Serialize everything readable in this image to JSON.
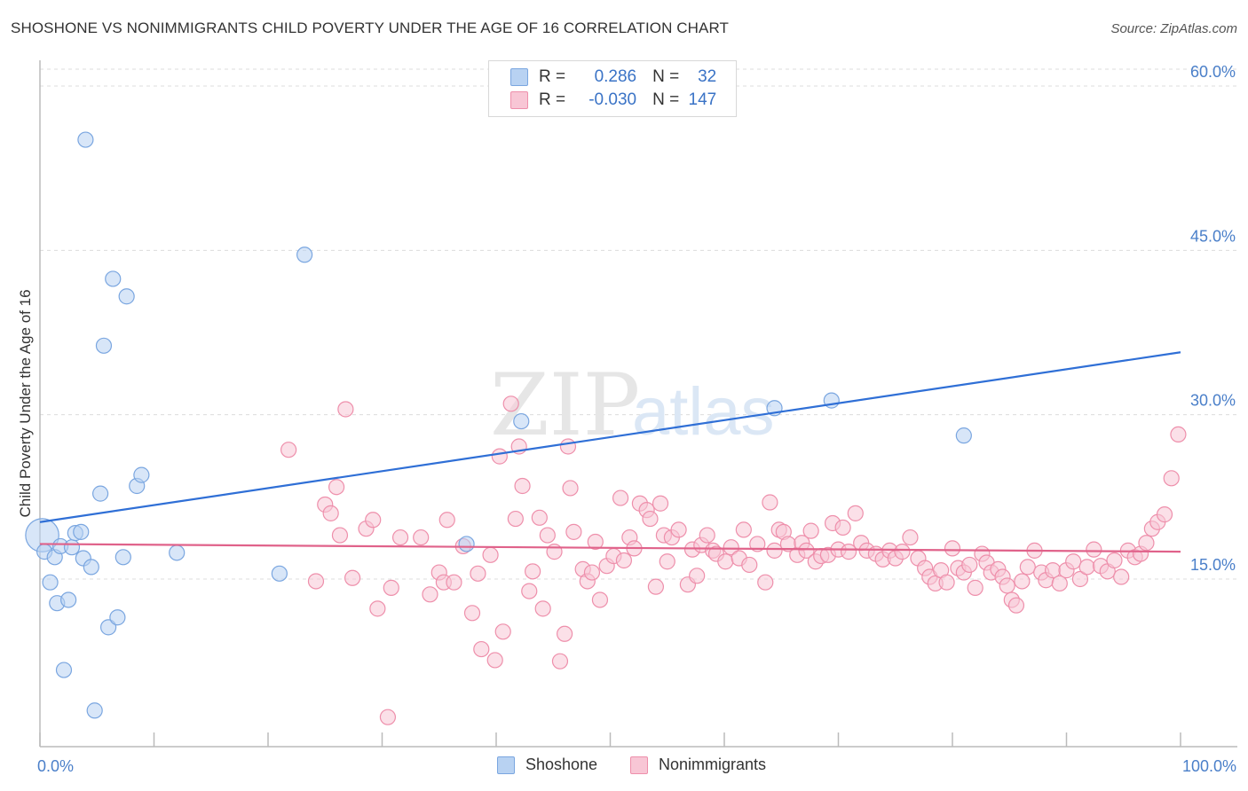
{
  "title": "SHOSHONE VS NONIMMIGRANTS CHILD POVERTY UNDER THE AGE OF 16 CORRELATION CHART",
  "source": "Source: ZipAtlas.com",
  "watermark": {
    "zip": "ZIP",
    "atlas": "atlas"
  },
  "legend": {
    "r_label": "R =",
    "n_label": "N =",
    "rows": [
      {
        "r": "0.286",
        "n": "32",
        "color": "#a9c8ef",
        "border": "#7aa6e0"
      },
      {
        "r": "-0.030",
        "n": "147",
        "color": "#f7b8cb",
        "border": "#ee8fab"
      }
    ]
  },
  "bottom_legend": [
    {
      "label": "Shoshone",
      "color": "#b8d2f2",
      "border": "#7aa6e0"
    },
    {
      "label": "Nonimmigrants",
      "color": "#f8c6d5",
      "border": "#ee8fab"
    }
  ],
  "chart_data": {
    "type": "scatter",
    "title": "SHOSHONE VS NONIMMIGRANTS CHILD POVERTY UNDER THE AGE OF 16 CORRELATION CHART",
    "xlabel": "",
    "ylabel": "Child Poverty Under the Age of 16",
    "xlim": [
      0,
      100
    ],
    "ylim": [
      0,
      60
    ],
    "x_tick_labels": [
      "0.0%",
      "100.0%"
    ],
    "y_ticks": [
      15,
      30,
      45,
      60
    ],
    "y_tick_labels": [
      "15.0%",
      "30.0%",
      "45.0%",
      "60.0%"
    ],
    "grid": true,
    "legend_position": "top-center",
    "series": [
      {
        "name": "Shoshone",
        "color": "#7aa6e0",
        "fill": "#b8d2f2",
        "trend": {
          "x": [
            0,
            100
          ],
          "y": [
            20.2,
            35.7
          ],
          "color": "#2f6fd6"
        },
        "points": [
          [
            0.2,
            19.0,
            2.2
          ],
          [
            0.4,
            17.5,
            1
          ],
          [
            0.9,
            14.7,
            1
          ],
          [
            1.3,
            17.0,
            1
          ],
          [
            1.5,
            12.8,
            1
          ],
          [
            1.8,
            18.0,
            1
          ],
          [
            2.1,
            6.7,
            1
          ],
          [
            2.5,
            13.1,
            1
          ],
          [
            2.8,
            17.9,
            1
          ],
          [
            3.1,
            19.2,
            1
          ],
          [
            3.6,
            19.3,
            1
          ],
          [
            3.8,
            16.9,
            1
          ],
          [
            4.0,
            55.1,
            1
          ],
          [
            4.5,
            16.1,
            1
          ],
          [
            4.8,
            3.0,
            1
          ],
          [
            5.3,
            22.8,
            1
          ],
          [
            5.6,
            36.3,
            1
          ],
          [
            6.0,
            10.6,
            1
          ],
          [
            6.4,
            42.4,
            1
          ],
          [
            6.8,
            11.5,
            1
          ],
          [
            7.3,
            17.0,
            1
          ],
          [
            7.6,
            40.8,
            1
          ],
          [
            8.5,
            23.5,
            1
          ],
          [
            8.9,
            24.5,
            1
          ],
          [
            12.0,
            17.4,
            1
          ],
          [
            21.0,
            15.5,
            1
          ],
          [
            23.2,
            44.6,
            1
          ],
          [
            37.4,
            18.2,
            1
          ],
          [
            42.2,
            29.4,
            1
          ],
          [
            64.4,
            30.6,
            1
          ],
          [
            69.4,
            31.3,
            1
          ],
          [
            81.0,
            28.1,
            1
          ]
        ]
      },
      {
        "name": "Nonimmigrants",
        "color": "#ee8fab",
        "fill": "#f8c6d5",
        "trend": {
          "x": [
            0,
            100
          ],
          "y": [
            18.2,
            17.5
          ],
          "color": "#e0628a"
        },
        "points": [
          [
            21.8,
            26.8,
            1
          ],
          [
            24.2,
            14.8,
            1
          ],
          [
            25.0,
            21.8,
            1
          ],
          [
            25.5,
            21.0,
            1
          ],
          [
            26.0,
            23.4,
            1
          ],
          [
            26.3,
            19.0,
            1
          ],
          [
            26.8,
            30.5,
            1
          ],
          [
            27.4,
            15.1,
            1
          ],
          [
            28.6,
            19.6,
            1
          ],
          [
            29.2,
            20.4,
            1
          ],
          [
            29.6,
            12.3,
            1
          ],
          [
            30.5,
            2.4,
            1
          ],
          [
            30.8,
            14.2,
            1
          ],
          [
            31.6,
            18.8,
            1
          ],
          [
            33.4,
            18.8,
            1
          ],
          [
            34.2,
            13.6,
            1
          ],
          [
            35.0,
            15.6,
            1
          ],
          [
            35.4,
            14.7,
            1
          ],
          [
            35.7,
            20.4,
            1
          ],
          [
            36.3,
            14.7,
            1
          ],
          [
            37.1,
            18.0,
            1
          ],
          [
            37.9,
            11.9,
            1
          ],
          [
            38.4,
            15.5,
            1
          ],
          [
            38.7,
            8.6,
            1
          ],
          [
            39.5,
            17.2,
            1
          ],
          [
            39.9,
            7.6,
            1
          ],
          [
            40.3,
            26.2,
            1
          ],
          [
            40.6,
            10.2,
            1
          ],
          [
            41.3,
            31.0,
            1
          ],
          [
            41.7,
            20.5,
            1
          ],
          [
            42.0,
            27.1,
            1
          ],
          [
            42.3,
            23.5,
            1
          ],
          [
            42.9,
            13.9,
            1
          ],
          [
            43.2,
            15.7,
            1
          ],
          [
            43.8,
            20.6,
            1
          ],
          [
            44.1,
            12.3,
            1
          ],
          [
            44.5,
            19.0,
            1
          ],
          [
            45.1,
            17.5,
            1
          ],
          [
            45.6,
            7.5,
            1
          ],
          [
            46.0,
            10.0,
            1
          ],
          [
            46.3,
            27.1,
            1
          ],
          [
            46.5,
            23.3,
            1
          ],
          [
            46.8,
            19.3,
            1
          ],
          [
            47.6,
            15.9,
            1
          ],
          [
            48.0,
            14.8,
            1
          ],
          [
            48.4,
            15.6,
            1
          ],
          [
            48.7,
            18.4,
            1
          ],
          [
            49.1,
            13.1,
            1
          ],
          [
            49.7,
            16.2,
            1
          ],
          [
            50.3,
            17.1,
            1
          ],
          [
            50.9,
            22.4,
            1
          ],
          [
            51.2,
            16.7,
            1
          ],
          [
            51.7,
            18.8,
            1
          ],
          [
            52.1,
            17.8,
            1
          ],
          [
            52.6,
            21.9,
            1
          ],
          [
            53.2,
            21.3,
            1
          ],
          [
            53.5,
            20.5,
            1
          ],
          [
            54.0,
            14.3,
            1
          ],
          [
            54.4,
            21.9,
            1
          ],
          [
            54.7,
            19.0,
            1
          ],
          [
            55.0,
            16.6,
            1
          ],
          [
            55.4,
            18.8,
            1
          ],
          [
            56.0,
            19.5,
            1
          ],
          [
            56.8,
            14.5,
            1
          ],
          [
            57.2,
            17.7,
            1
          ],
          [
            57.6,
            15.3,
            1
          ],
          [
            58.0,
            18.1,
            1
          ],
          [
            58.5,
            19.0,
            1
          ],
          [
            59.0,
            17.6,
            1
          ],
          [
            59.3,
            17.3,
            1
          ],
          [
            60.1,
            16.6,
            1
          ],
          [
            60.6,
            17.9,
            1
          ],
          [
            61.3,
            16.9,
            1
          ],
          [
            61.7,
            19.5,
            1
          ],
          [
            62.2,
            16.3,
            1
          ],
          [
            62.9,
            18.2,
            1
          ],
          [
            63.6,
            14.7,
            1
          ],
          [
            64.0,
            22.0,
            1
          ],
          [
            64.4,
            17.6,
            1
          ],
          [
            64.8,
            19.5,
            1
          ],
          [
            65.2,
            19.3,
            1
          ],
          [
            65.6,
            18.2,
            1
          ],
          [
            66.4,
            17.2,
            1
          ],
          [
            66.8,
            18.3,
            1
          ],
          [
            67.2,
            17.6,
            1
          ],
          [
            67.6,
            19.4,
            1
          ],
          [
            68.0,
            16.6,
            1
          ],
          [
            68.5,
            17.1,
            1
          ],
          [
            69.1,
            17.2,
            1
          ],
          [
            69.5,
            20.1,
            1
          ],
          [
            70.0,
            17.7,
            1
          ],
          [
            70.4,
            19.7,
            1
          ],
          [
            70.9,
            17.5,
            1
          ],
          [
            71.5,
            21.0,
            1
          ],
          [
            72.0,
            18.3,
            1
          ],
          [
            72.5,
            17.6,
            1
          ],
          [
            73.3,
            17.3,
            1
          ],
          [
            73.9,
            16.8,
            1
          ],
          [
            74.5,
            17.6,
            1
          ],
          [
            75.0,
            16.9,
            1
          ],
          [
            75.6,
            17.5,
            1
          ],
          [
            76.3,
            18.8,
            1
          ],
          [
            77.0,
            16.9,
            1
          ],
          [
            77.6,
            16.0,
            1
          ],
          [
            78.0,
            15.2,
            1
          ],
          [
            78.5,
            14.6,
            1
          ],
          [
            79.0,
            15.8,
            1
          ],
          [
            79.5,
            14.7,
            1
          ],
          [
            80.0,
            17.8,
            1
          ],
          [
            80.5,
            16.0,
            1
          ],
          [
            81.0,
            15.6,
            1
          ],
          [
            81.5,
            16.3,
            1
          ],
          [
            82.0,
            14.2,
            1
          ],
          [
            82.6,
            17.3,
            1
          ],
          [
            83.0,
            16.5,
            1
          ],
          [
            83.4,
            15.6,
            1
          ],
          [
            84.0,
            15.9,
            1
          ],
          [
            84.4,
            15.2,
            1
          ],
          [
            84.8,
            14.4,
            1
          ],
          [
            85.2,
            13.1,
            1
          ],
          [
            85.6,
            12.6,
            1
          ],
          [
            86.1,
            14.8,
            1
          ],
          [
            86.6,
            16.1,
            1
          ],
          [
            87.2,
            17.6,
            1
          ],
          [
            87.8,
            15.6,
            1
          ],
          [
            88.2,
            14.9,
            1
          ],
          [
            88.8,
            15.8,
            1
          ],
          [
            89.4,
            14.6,
            1
          ],
          [
            90.0,
            15.8,
            1
          ],
          [
            90.6,
            16.6,
            1
          ],
          [
            91.2,
            15.0,
            1
          ],
          [
            91.8,
            16.1,
            1
          ],
          [
            92.4,
            17.7,
            1
          ],
          [
            93.0,
            16.2,
            1
          ],
          [
            93.6,
            15.7,
            1
          ],
          [
            94.2,
            16.7,
            1
          ],
          [
            94.8,
            15.2,
            1
          ],
          [
            95.4,
            17.6,
            1
          ],
          [
            96.0,
            17.0,
            1
          ],
          [
            96.5,
            17.3,
            1
          ],
          [
            97.0,
            18.3,
            1
          ],
          [
            97.5,
            19.6,
            1
          ],
          [
            98.0,
            20.2,
            1
          ],
          [
            98.6,
            20.9,
            1
          ],
          [
            99.2,
            24.2,
            1
          ],
          [
            99.8,
            28.2,
            1
          ]
        ]
      }
    ]
  }
}
